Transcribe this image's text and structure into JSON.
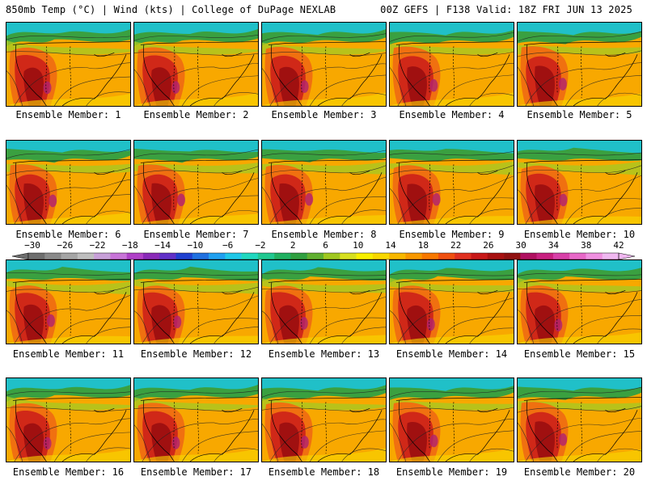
{
  "header": {
    "left": "850mb Temp (°C) | Wind (kts) | College of DuPage NEXLAB",
    "right": "00Z GEFS | F138 Valid: 18Z FRI JUN 13 2025"
  },
  "panels": [
    {
      "label": "Ensemble Member: 1"
    },
    {
      "label": "Ensemble Member: 2"
    },
    {
      "label": "Ensemble Member: 3"
    },
    {
      "label": "Ensemble Member: 4"
    },
    {
      "label": "Ensemble Member: 5"
    },
    {
      "label": "Ensemble Member: 6"
    },
    {
      "label": "Ensemble Member: 7"
    },
    {
      "label": "Ensemble Member: 8"
    },
    {
      "label": "Ensemble Member: 9"
    },
    {
      "label": "Ensemble Member: 10"
    },
    {
      "label": "Ensemble Member: 11"
    },
    {
      "label": "Ensemble Member: 12"
    },
    {
      "label": "Ensemble Member: 13"
    },
    {
      "label": "Ensemble Member: 14"
    },
    {
      "label": "Ensemble Member: 15"
    },
    {
      "label": "Ensemble Member: 16"
    },
    {
      "label": "Ensemble Member: 17"
    },
    {
      "label": "Ensemble Member: 18"
    },
    {
      "label": "Ensemble Member: 19"
    },
    {
      "label": "Ensemble Member: 20"
    }
  ],
  "colorbar": {
    "labels": [
      "−30",
      "−26",
      "−22",
      "−18",
      "−14",
      "−10",
      "−6",
      "−2",
      "2",
      "6",
      "10",
      "14",
      "18",
      "22",
      "26",
      "30",
      "34",
      "38",
      "42"
    ],
    "colors": [
      "#6e6e6e",
      "#8a8a8a",
      "#a6a6a6",
      "#bfbfbf",
      "#c8a0d8",
      "#c874d8",
      "#b040c8",
      "#8a2ab8",
      "#6030c8",
      "#2040d0",
      "#2070e0",
      "#20a0f0",
      "#20c8e8",
      "#20d8c0",
      "#20c890",
      "#20b060",
      "#30a040",
      "#60b030",
      "#a0c820",
      "#d8e020",
      "#f8f000",
      "#f8d800",
      "#f8b800",
      "#f89800",
      "#f87800",
      "#f05010",
      "#e03020",
      "#c81818",
      "#a81010",
      "#901010",
      "#b01060",
      "#c82080",
      "#d840a8",
      "#e868c8",
      "#f090e0",
      "#f0b8f0"
    ]
  }
}
